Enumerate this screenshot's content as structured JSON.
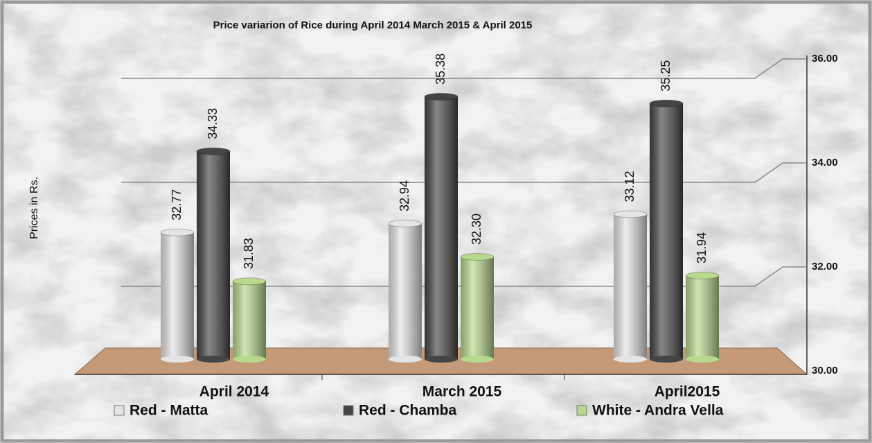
{
  "chart_data": {
    "type": "bar",
    "title": "Price variarion of Rice during April 2014 March 2015 & April 2015",
    "y_label": "Prices in Rs.",
    "categories": [
      "April 2014",
      "March 2015",
      "April2015"
    ],
    "series": [
      {
        "name": "Red - Matta",
        "color": "#e4e4e4",
        "values": [
          32.77,
          32.94,
          33.12
        ]
      },
      {
        "name": "Red - Chamba",
        "color": "#454545",
        "values": [
          34.33,
          35.38,
          35.25
        ]
      },
      {
        "name": "White - Andra Vella",
        "color": "#b8d88c",
        "values": [
          31.83,
          32.3,
          31.94
        ],
        "value_labels": [
          "31.83",
          "32.30",
          "31.94"
        ]
      }
    ],
    "ylim": [
      30,
      36
    ],
    "yticks": [
      {
        "value": 30,
        "label": "30.00"
      },
      {
        "value": 32,
        "label": "32.00"
      },
      {
        "value": 34,
        "label": "34.00"
      },
      {
        "value": 36,
        "label": "36.00"
      }
    ],
    "grid": true
  }
}
